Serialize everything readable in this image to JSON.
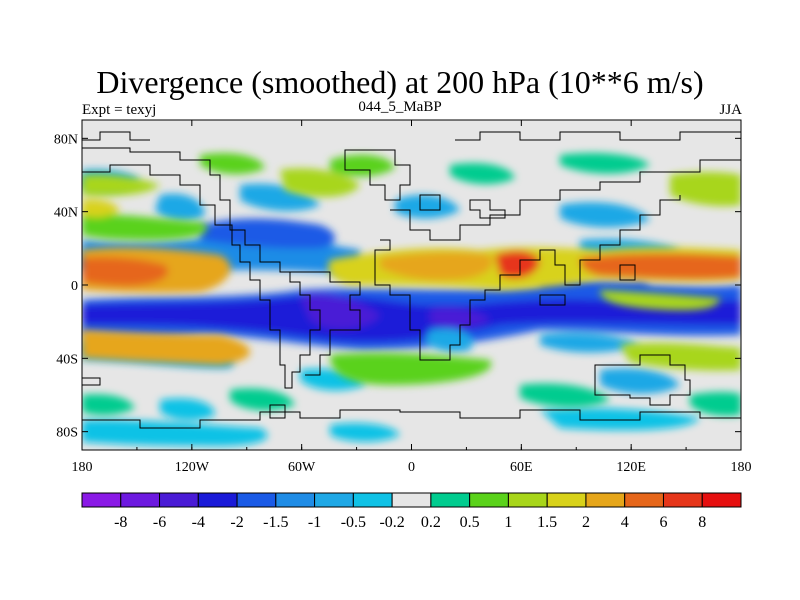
{
  "title": "Divergence (smoothed) at 200 hPa (10**6 m/s)",
  "subtitle_left": "Expt = texyj",
  "subtitle_center": "044_5_MaBP",
  "subtitle_right": "JJA",
  "x_ticks": [
    "180",
    "120W",
    "60W",
    "0",
    "60E",
    "120E",
    "180"
  ],
  "y_ticks": [
    "80N",
    "40N",
    "0",
    "40S",
    "80S"
  ],
  "colorbar_labels": [
    "-8",
    "-6",
    "-4",
    "-2",
    "-1.5",
    "-1",
    "-0.5",
    "-0.2",
    "0.2",
    "0.5",
    "1",
    "1.5",
    "2",
    "4",
    "6",
    "8"
  ],
  "colorbar_colors": [
    "#8a19e6",
    "#6d19e0",
    "#4a1bd6",
    "#1a1ad8",
    "#1a5ae6",
    "#1f8ce6",
    "#1fa8e6",
    "#10c2e6",
    "#e6e6e6",
    "#00cc8f",
    "#5ad21a",
    "#a8d61a",
    "#d8d21a",
    "#e6a61a",
    "#e6661a",
    "#e6361a",
    "#e60f0f"
  ],
  "map": {
    "lon_range": [
      -180,
      180
    ],
    "lat_range": [
      -90,
      90
    ],
    "background_color": "#e6e6e6"
  }
}
